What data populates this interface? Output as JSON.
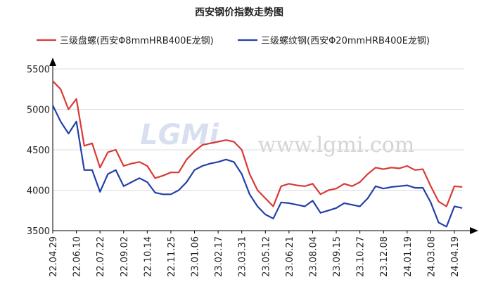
{
  "chart_data": {
    "type": "line",
    "title": "西安钢价指数走势图",
    "watermark": "www.lgmi.com",
    "logo": "LGMi",
    "categories": [
      "22.04.29",
      null,
      null,
      "22.06.10",
      null,
      null,
      "22.07.22",
      null,
      null,
      "22.09.02",
      null,
      null,
      "22.10.14",
      null,
      null,
      "22.11.25",
      null,
      null,
      "23.01.06",
      null,
      null,
      "23.02.17",
      null,
      null,
      "23.03.31",
      null,
      null,
      "23.05.12",
      null,
      null,
      "23.06.21",
      null,
      null,
      "23.08.04",
      null,
      null,
      "23.09.15",
      null,
      null,
      "23.10.27",
      null,
      null,
      "23.12.08",
      null,
      null,
      "24.01.19",
      null,
      null,
      "24.03.08",
      null,
      null,
      "24.04.19",
      null
    ],
    "series": [
      {
        "name": "三级盘螺(西安Φ8mmHRB400E龙钢)",
        "color": "#d93a35",
        "values": [
          5350,
          5250,
          5000,
          5130,
          4550,
          4580,
          4280,
          4470,
          4500,
          4300,
          4330,
          4350,
          4300,
          4150,
          4180,
          4220,
          4220,
          4380,
          4480,
          4560,
          4580,
          4600,
          4620,
          4600,
          4500,
          4200,
          4000,
          3900,
          3800,
          4050,
          4080,
          4060,
          4050,
          4080,
          3950,
          4000,
          4020,
          4080,
          4050,
          4100,
          4200,
          4280,
          4260,
          4280,
          4270,
          4300,
          4250,
          4260,
          4050,
          3860,
          3800,
          4050,
          4040
        ]
      },
      {
        "name": "三级螺纹钢(西安Φ20mmHRB400E龙钢)",
        "color": "#2340a8",
        "values": [
          5050,
          4850,
          4700,
          4850,
          4250,
          4250,
          3980,
          4200,
          4250,
          4050,
          4100,
          4150,
          4100,
          3970,
          3950,
          3950,
          4000,
          4100,
          4250,
          4300,
          4330,
          4350,
          4380,
          4350,
          4200,
          3950,
          3800,
          3700,
          3650,
          3850,
          3840,
          3820,
          3800,
          3870,
          3720,
          3750,
          3780,
          3840,
          3820,
          3800,
          3900,
          4050,
          4020,
          4040,
          4050,
          4060,
          4030,
          4030,
          3850,
          3600,
          3550,
          3800,
          3780
        ]
      }
    ],
    "ylim": [
      3500,
      5500
    ],
    "yticks": [
      3500,
      4000,
      4500,
      5000,
      5500
    ],
    "grid": true
  }
}
